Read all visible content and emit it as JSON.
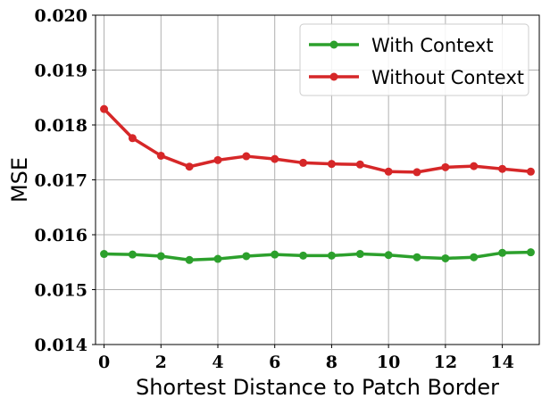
{
  "chart_data": {
    "type": "line",
    "xlabel": "Shortest Distance to Patch Border",
    "ylabel": "MSE",
    "xlim": [
      -0.3,
      15.3
    ],
    "ylim": [
      0.014,
      0.02
    ],
    "x_ticks": [
      0,
      2,
      4,
      6,
      8,
      10,
      12,
      14
    ],
    "x_tick_labels": [
      "0",
      "2",
      "4",
      "6",
      "8",
      "10",
      "12",
      "14"
    ],
    "y_ticks": [
      0.014,
      0.015,
      0.016,
      0.017,
      0.018,
      0.019,
      0.02
    ],
    "y_tick_labels": [
      "0.014",
      "0.015",
      "0.016",
      "0.017",
      "0.018",
      "0.019",
      "0.020"
    ],
    "grid": true,
    "legend_position": "top-right",
    "x": [
      0,
      1,
      2,
      3,
      4,
      5,
      6,
      7,
      8,
      9,
      10,
      11,
      12,
      13,
      14,
      15
    ],
    "series": [
      {
        "name": "With Context",
        "color": "#2ca02c",
        "values": [
          0.01565,
          0.01564,
          0.01561,
          0.01554,
          0.01556,
          0.01561,
          0.01564,
          0.01562,
          0.01562,
          0.01565,
          0.01563,
          0.01559,
          0.01557,
          0.01559,
          0.01567,
          0.01568
        ]
      },
      {
        "name": "Without Context",
        "color": "#d62728",
        "values": [
          0.01829,
          0.01776,
          0.01744,
          0.01724,
          0.01736,
          0.01743,
          0.01738,
          0.01731,
          0.01729,
          0.01728,
          0.01715,
          0.01714,
          0.01723,
          0.01725,
          0.0172,
          0.01715
        ]
      }
    ]
  }
}
